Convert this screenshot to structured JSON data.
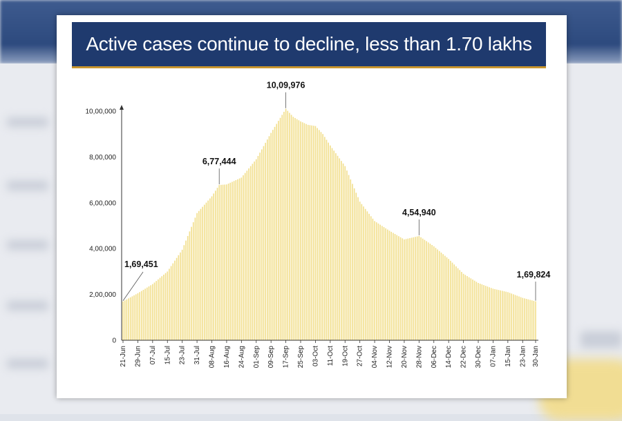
{
  "chart_data": {
    "type": "bar",
    "title": "Active cases continue to decline, less than 1.70 lakhs",
    "xlabel": "",
    "ylabel": "",
    "ylim": [
      0,
      1000000
    ],
    "grid": false,
    "legend": "none",
    "bar_color": "#f2df8e",
    "yticks": [
      {
        "value": 0,
        "label": "0"
      },
      {
        "value": 200000,
        "label": "2,00,000"
      },
      {
        "value": 400000,
        "label": "4,00,000"
      },
      {
        "value": 600000,
        "label": "6,00,000"
      },
      {
        "value": 800000,
        "label": "8,00,000"
      },
      {
        "value": 1000000,
        "label": "10,00,000"
      }
    ],
    "xticks": [
      "21-Jun",
      "29-Jun",
      "07-Jul",
      "15-Jul",
      "23-Jul",
      "31-Jul",
      "08-Aug",
      "16-Aug",
      "24-Aug",
      "01-Sep",
      "09-Sep",
      "17-Sep",
      "25-Sep",
      "03-Oct",
      "11-Oct",
      "19-Oct",
      "27-Oct",
      "04-Nov",
      "12-Nov",
      "20-Nov",
      "28-Nov",
      "06-Dec",
      "14-Dec",
      "22-Dec",
      "30-Dec",
      "07-Jan",
      "15-Jan",
      "23-Jan",
      "30-Jan"
    ],
    "xtick_days": [
      0,
      8,
      16,
      24,
      32,
      40,
      48,
      56,
      64,
      72,
      80,
      88,
      96,
      104,
      112,
      120,
      128,
      136,
      144,
      152,
      160,
      168,
      176,
      184,
      192,
      200,
      208,
      216,
      223
    ],
    "anchor_days": [
      0,
      8,
      16,
      24,
      32,
      40,
      48,
      52,
      56,
      60,
      64,
      72,
      80,
      88,
      92,
      96,
      100,
      104,
      108,
      112,
      120,
      128,
      136,
      144,
      152,
      160,
      168,
      176,
      184,
      192,
      200,
      208,
      216,
      223
    ],
    "anchor_values": [
      169451,
      205000,
      245000,
      300000,
      395000,
      555000,
      628000,
      677444,
      680000,
      695000,
      710000,
      790000,
      905000,
      1009976,
      975000,
      955000,
      940000,
      935000,
      900000,
      850000,
      760000,
      605000,
      520000,
      478000,
      440000,
      454940,
      410000,
      355000,
      290000,
      250000,
      225000,
      210000,
      185000,
      169824
    ],
    "annotations": [
      {
        "label": "1,69,451",
        "day": 0,
        "value": 169451
      },
      {
        "label": "6,77,444",
        "day": 52,
        "value": 677444
      },
      {
        "label": "10,09,976",
        "day": 88,
        "value": 1009976
      },
      {
        "label": "4,54,940",
        "day": 160,
        "value": 454940
      },
      {
        "label": "1,69,824",
        "day": 223,
        "value": 169824
      }
    ]
  }
}
